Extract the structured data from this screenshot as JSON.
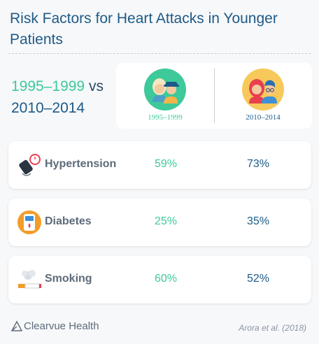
{
  "title": "Risk Factors for Heart Attacks in Younger Patients",
  "comparison": {
    "period_a": "1995–1999",
    "vs": "vs",
    "period_b": "2010–2014"
  },
  "eras": [
    {
      "label": "1995–1999",
      "color": "#3ec99a"
    },
    {
      "label": "2010–2014",
      "color": "#1d5a87"
    }
  ],
  "chart_data": {
    "type": "table",
    "columns": [
      "1995–1999",
      "2010–2014"
    ],
    "rows": [
      {
        "name": "Hypertension",
        "values": [
          59,
          73
        ],
        "labels": [
          "59%",
          "73%"
        ],
        "icon": "blood-pressure-monitor-icon"
      },
      {
        "name": "Diabetes",
        "values": [
          25,
          35
        ],
        "labels": [
          "25%",
          "35%"
        ],
        "icon": "glucose-meter-icon"
      },
      {
        "name": "Smoking",
        "values": [
          60,
          52
        ],
        "labels": [
          "60%",
          "52%"
        ],
        "icon": "cigarette-icon"
      }
    ]
  },
  "footer": {
    "brand": "Clearvue Health",
    "source": "Arora et al. (2018)"
  }
}
